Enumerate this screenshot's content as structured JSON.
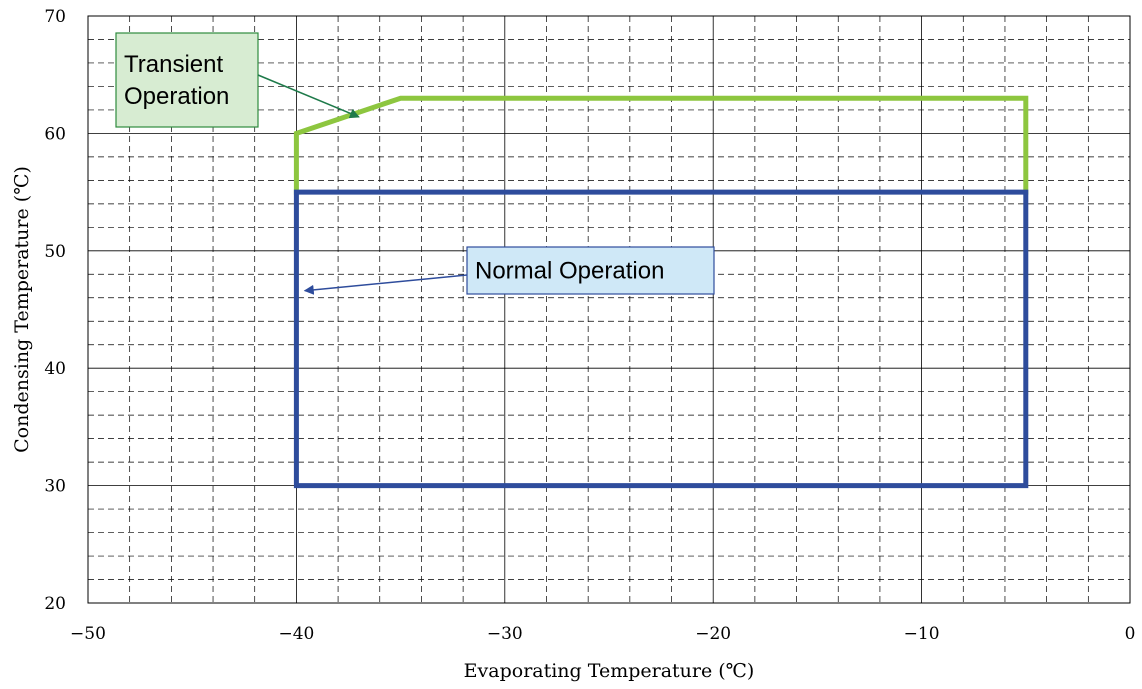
{
  "chart_data": {
    "type": "line",
    "xlabel": "Evaporating Temperature (℃)",
    "ylabel": "Condensing Temperature (℃)",
    "xlim": [
      -50,
      0
    ],
    "ylim": [
      20,
      70
    ],
    "x_ticks": [
      -50,
      -40,
      -30,
      -20,
      -10,
      0
    ],
    "x_tick_labels": [
      "−50",
      "−40",
      "−30",
      "−20",
      "−10",
      "0"
    ],
    "y_ticks": [
      20,
      30,
      40,
      50,
      60,
      70
    ],
    "y_tick_labels": [
      "20",
      "30",
      "40",
      "50",
      "60",
      "70"
    ],
    "x_minor_step": 2,
    "y_minor_step": 2,
    "grid": true,
    "series": [
      {
        "key": "transient",
        "color": "#8dc63f",
        "points": [
          [
            -40,
            55
          ],
          [
            -40,
            60
          ],
          [
            -35,
            63
          ],
          [
            -5,
            63
          ],
          [
            -5,
            55
          ]
        ]
      },
      {
        "key": "normal",
        "color": "#2e4c9c",
        "points": [
          [
            -40,
            30
          ],
          [
            -40,
            55
          ],
          [
            -5,
            55
          ],
          [
            -5,
            30
          ],
          [
            -40,
            30
          ]
        ]
      }
    ],
    "annotations": [
      {
        "key": "transient",
        "lines": [
          "Transient",
          "Operation"
        ],
        "fill": "#d7ecd2",
        "border": "#2e8b3e",
        "arrow_color": "#1e7a4a",
        "arrow_to": [
          -37,
          61.4
        ]
      },
      {
        "key": "normal",
        "lines": [
          "Normal Operation"
        ],
        "fill": "#cfe8f7",
        "border": "#2e4c9c",
        "arrow_color": "#2e4c9c",
        "arrow_to": [
          -39.6,
          46.6
        ]
      }
    ]
  }
}
